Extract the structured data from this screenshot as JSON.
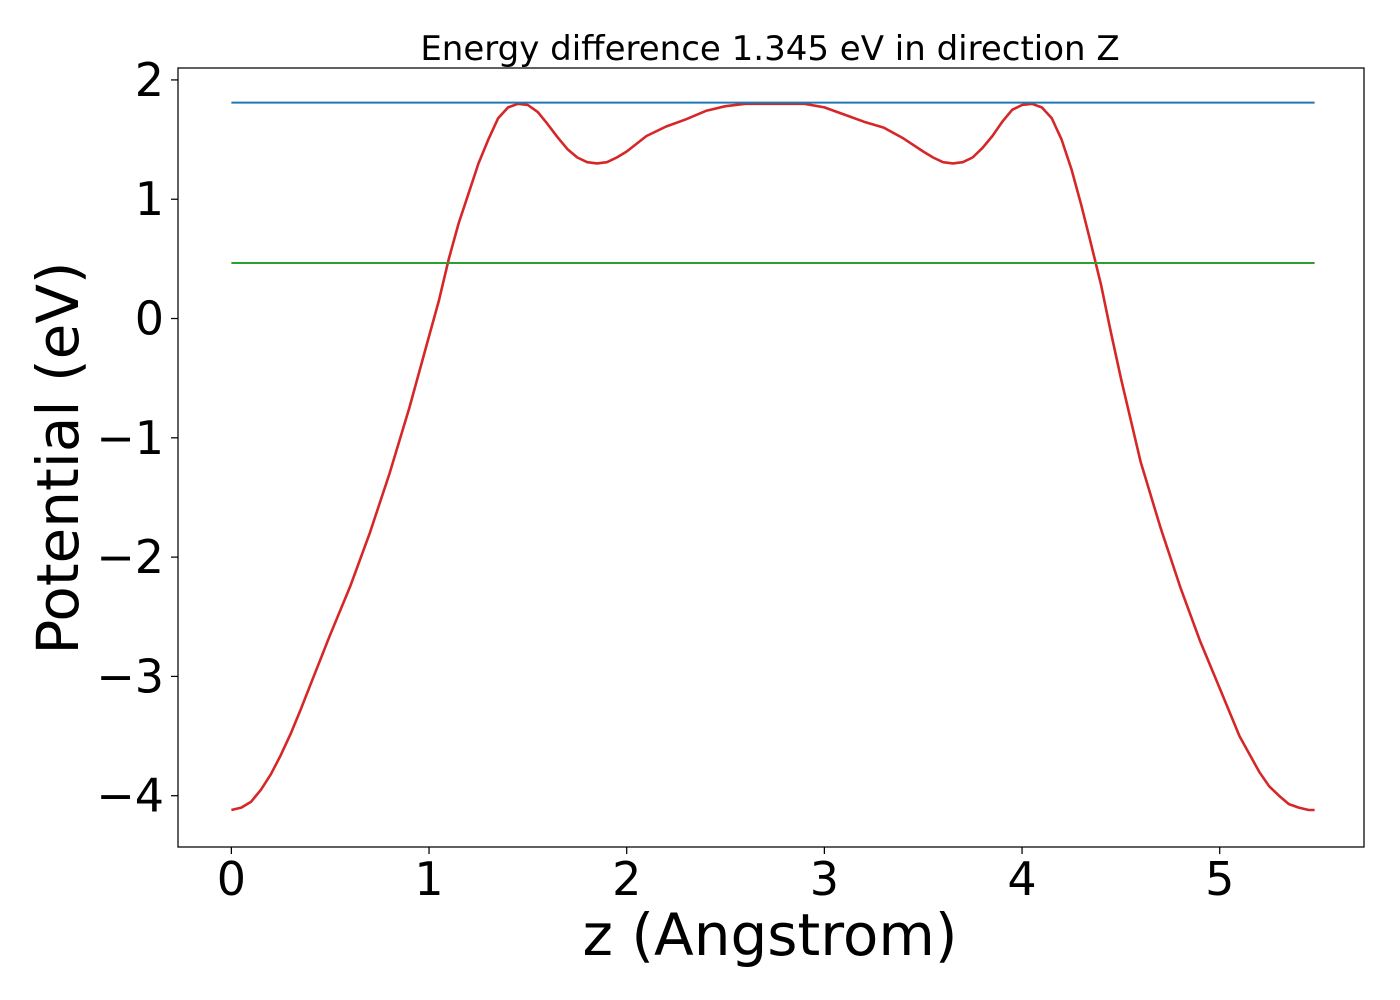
{
  "chart_data": {
    "type": "line",
    "title": "Energy difference 1.345 eV in direction Z",
    "xlabel": "z (Angstrom)",
    "ylabel": "Potential (eV)",
    "xlim": [
      -0.27,
      5.73
    ],
    "ylim": [
      -4.43,
      2.1
    ],
    "xticks": [
      0,
      1,
      2,
      3,
      4,
      5
    ],
    "xtick_labels": [
      "0",
      "1",
      "2",
      "3",
      "4",
      "5"
    ],
    "yticks": [
      -4,
      -3,
      -2,
      -1,
      0,
      1,
      2
    ],
    "ytick_labels": [
      "−4",
      "−3",
      "−2",
      "−1",
      "0",
      "1",
      "2"
    ],
    "grid": false,
    "series": [
      {
        "color": "#d62728",
        "x": [
          0.0,
          0.05,
          0.1,
          0.15,
          0.2,
          0.25,
          0.3,
          0.35,
          0.4,
          0.5,
          0.6,
          0.7,
          0.8,
          0.9,
          1.0,
          1.05,
          1.1,
          1.15,
          1.2,
          1.25,
          1.3,
          1.35,
          1.4,
          1.45,
          1.5,
          1.55,
          1.6,
          1.65,
          1.7,
          1.75,
          1.8,
          1.85,
          1.9,
          1.95,
          2.0,
          2.1,
          2.2,
          2.3,
          2.4,
          2.5,
          2.6,
          2.7,
          2.8,
          2.9,
          3.0,
          3.1,
          3.2,
          3.3,
          3.4,
          3.5,
          3.55,
          3.6,
          3.65,
          3.7,
          3.75,
          3.8,
          3.85,
          3.9,
          3.95,
          4.0,
          4.05,
          4.1,
          4.15,
          4.2,
          4.25,
          4.3,
          4.35,
          4.4,
          4.45,
          4.5,
          4.6,
          4.7,
          4.8,
          4.9,
          5.0,
          5.1,
          5.2,
          5.25,
          5.3,
          5.35,
          5.4,
          5.45,
          5.48
        ],
        "y": [
          -4.12,
          -4.1,
          -4.05,
          -3.95,
          -3.82,
          -3.66,
          -3.48,
          -3.28,
          -3.07,
          -2.65,
          -2.25,
          -1.8,
          -1.3,
          -0.75,
          -0.15,
          0.15,
          0.5,
          0.8,
          1.05,
          1.3,
          1.5,
          1.68,
          1.77,
          1.8,
          1.79,
          1.73,
          1.63,
          1.52,
          1.42,
          1.35,
          1.31,
          1.3,
          1.31,
          1.35,
          1.4,
          1.53,
          1.61,
          1.67,
          1.74,
          1.78,
          1.8,
          1.8,
          1.8,
          1.8,
          1.77,
          1.71,
          1.65,
          1.6,
          1.51,
          1.4,
          1.35,
          1.31,
          1.3,
          1.31,
          1.35,
          1.43,
          1.53,
          1.65,
          1.75,
          1.79,
          1.8,
          1.77,
          1.68,
          1.5,
          1.25,
          0.95,
          0.62,
          0.28,
          -0.12,
          -0.5,
          -1.2,
          -1.75,
          -2.25,
          -2.7,
          -3.1,
          -3.5,
          -3.8,
          -3.92,
          -4.0,
          -4.07,
          -4.1,
          -4.12,
          -4.12
        ]
      },
      {
        "color": "#1f77b4",
        "x": [
          0.0,
          5.48
        ],
        "y": [
          1.81,
          1.81
        ]
      },
      {
        "color": "#2ca02c",
        "x": [
          0.0,
          5.48
        ],
        "y": [
          0.465,
          0.465
        ]
      }
    ]
  }
}
